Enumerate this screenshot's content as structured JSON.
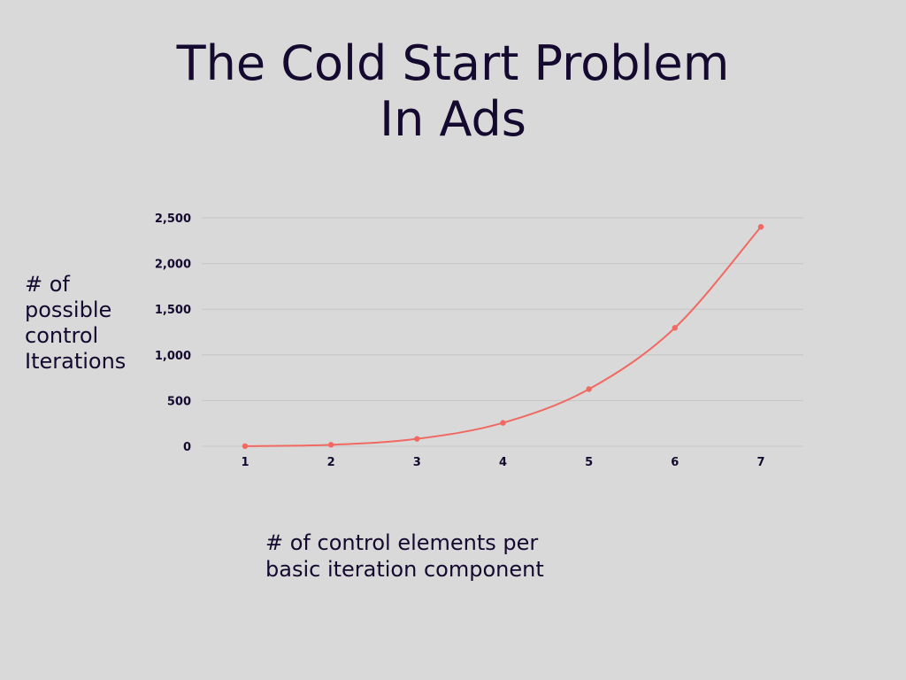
{
  "colors": {
    "background": "#d9d9d9",
    "text": "#14092e",
    "series": "#f06a63",
    "grid": "#c6c6c6"
  },
  "chart_data": {
    "type": "line",
    "title_lines": [
      "The Cold Start Problem",
      "In Ads"
    ],
    "ylabel_lines": [
      "# of",
      "possible",
      "control",
      "Iterations"
    ],
    "xlabel_lines": [
      "# of control elements per",
      "basic iteration component"
    ],
    "x": [
      1,
      2,
      3,
      4,
      5,
      6,
      7
    ],
    "series": [
      {
        "values": [
          1,
          16,
          81,
          256,
          625,
          1296,
          2401
        ]
      }
    ],
    "yticks": [
      0,
      500,
      1000,
      1500,
      2000,
      2500
    ],
    "ytick_labels": [
      "0",
      "500",
      "1,000",
      "1,500",
      "2,000",
      "2,500"
    ],
    "xtick_labels": [
      "1",
      "2",
      "3",
      "4",
      "5",
      "6",
      "7"
    ],
    "ylim": [
      0,
      2500
    ],
    "xlim": [
      1,
      7
    ],
    "grid": true,
    "smooth": true,
    "markers": true,
    "legend": "none"
  }
}
